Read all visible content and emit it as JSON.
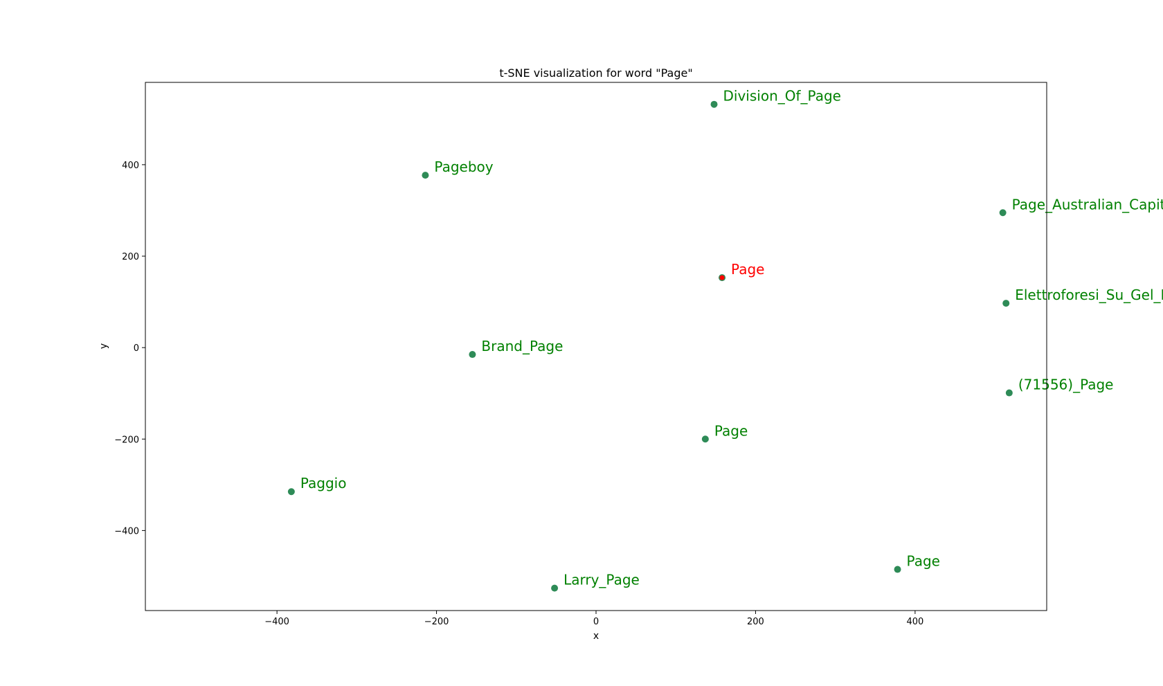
{
  "chart_data": {
    "type": "scatter",
    "title": "t-SNE visualization for word \"Page\"",
    "xlabel": "x",
    "ylabel": "y",
    "xlim": [
      -565,
      565
    ],
    "ylim": [
      -575,
      580
    ],
    "xticks": [
      -400,
      -200,
      0,
      200,
      400
    ],
    "yticks": [
      -400,
      -200,
      0,
      200,
      400
    ],
    "xtick_labels": [
      "−400",
      "−200",
      "0",
      "200",
      "400"
    ],
    "ytick_labels": [
      "−400",
      "−200",
      "0",
      "200",
      "400"
    ],
    "grid": false,
    "colors": {
      "point": "#2e8b57",
      "label": "#008000",
      "highlight": "#ff0000"
    },
    "points": [
      {
        "label": "Division_Of_Page",
        "x": 148,
        "y": 532,
        "highlight": false
      },
      {
        "label": "Pageboy",
        "x": -214,
        "y": 377,
        "highlight": false
      },
      {
        "label": "Page_Australian_Capital_Territory",
        "x": 510,
        "y": 295,
        "highlight": false
      },
      {
        "label": "Page",
        "x": 158,
        "y": 153,
        "highlight": true
      },
      {
        "label": "Elettroforesi_Su_Gel_Di_Poliacrilammide",
        "x": 514,
        "y": 97,
        "highlight": false
      },
      {
        "label": "Brand_Page",
        "x": -155,
        "y": -15,
        "highlight": false
      },
      {
        "label": "(71556)_Page",
        "x": 518,
        "y": -99,
        "highlight": false
      },
      {
        "label": "Page",
        "x": 137,
        "y": -200,
        "highlight": false
      },
      {
        "label": "Paggio",
        "x": -382,
        "y": -315,
        "highlight": false
      },
      {
        "label": "Page",
        "x": 378,
        "y": -485,
        "highlight": false
      },
      {
        "label": "Larry_Page",
        "x": -52,
        "y": -526,
        "highlight": false
      }
    ]
  }
}
